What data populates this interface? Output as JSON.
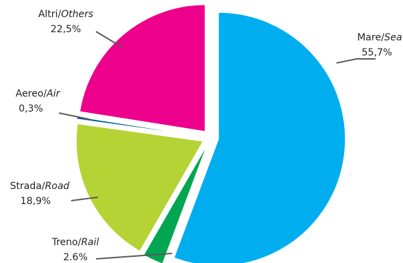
{
  "chart_data": {
    "type": "pie",
    "exploded": true,
    "slices": [
      {
        "name_it": "Mare",
        "name_en": "Sea",
        "value_label": "55,7%",
        "value": 55.7,
        "color": "#00aeef"
      },
      {
        "name_it": "Treno",
        "name_en": "Rail",
        "value_label": "2.6%",
        "value": 2.6,
        "color": "#00a651"
      },
      {
        "name_it": "Strada",
        "name_en": "Road",
        "value_label": "18,9%",
        "value": 18.9,
        "color": "#b5d334"
      },
      {
        "name_it": "Aereo",
        "name_en": "Air",
        "value_label": "0,3%",
        "value": 0.3,
        "color": "#005b8f"
      },
      {
        "name_it": "Altri",
        "name_en": "Others",
        "value_label": "22,5%",
        "value": 22.5,
        "color": "#ec008c"
      }
    ]
  }
}
